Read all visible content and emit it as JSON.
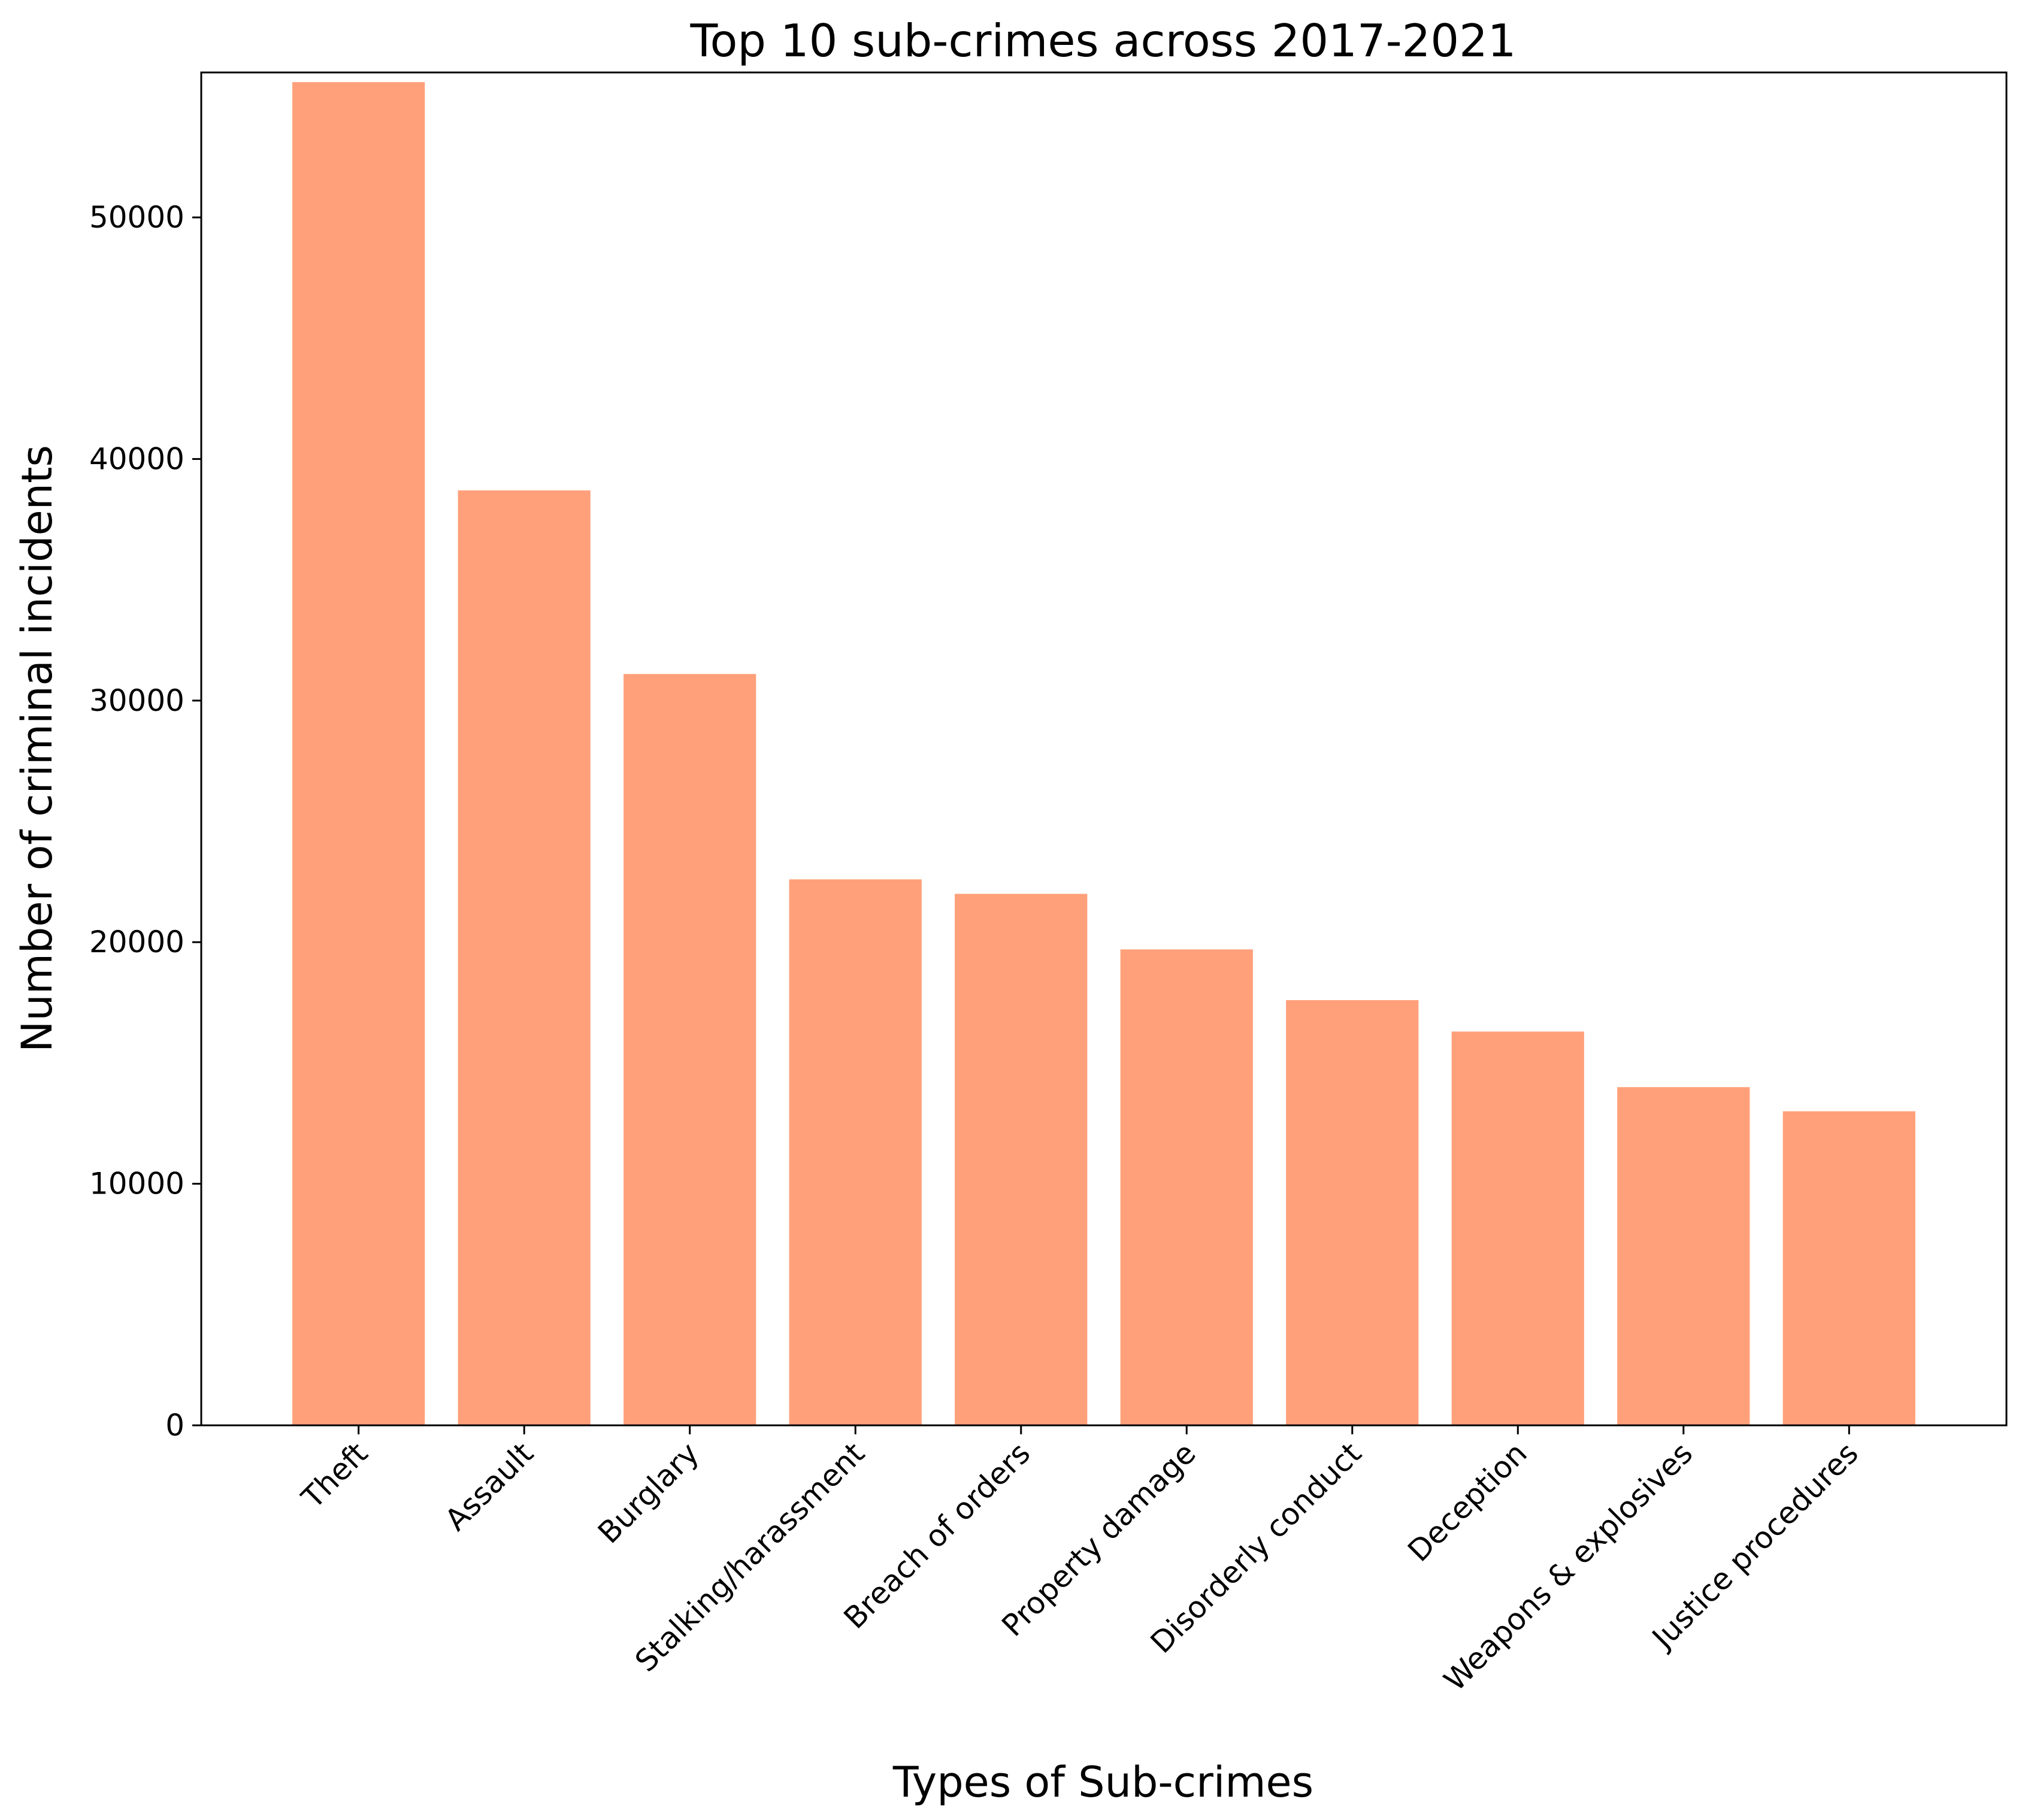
{
  "chart_data": {
    "type": "bar",
    "title": "Top 10 sub-crimes across 2017-2021",
    "xlabel": "Types of Sub-crimes",
    "ylabel": "Number of criminal incidents",
    "categories": [
      "Theft",
      "Assault",
      "Burglary",
      "Stalking/harassment",
      "Breach of orders",
      "Property damage",
      "Disorderly conduct",
      "Deception",
      "Weapons & explosives",
      "Justice procedures"
    ],
    "values": [
      55600,
      38700,
      31100,
      22600,
      22000,
      19700,
      17600,
      16300,
      14000,
      13000
    ],
    "ylim": [
      0,
      56000
    ],
    "yticks": [
      0,
      10000,
      20000,
      30000,
      40000,
      50000
    ],
    "bar_color": "#ffa07a",
    "grid": false,
    "legend": "none"
  }
}
